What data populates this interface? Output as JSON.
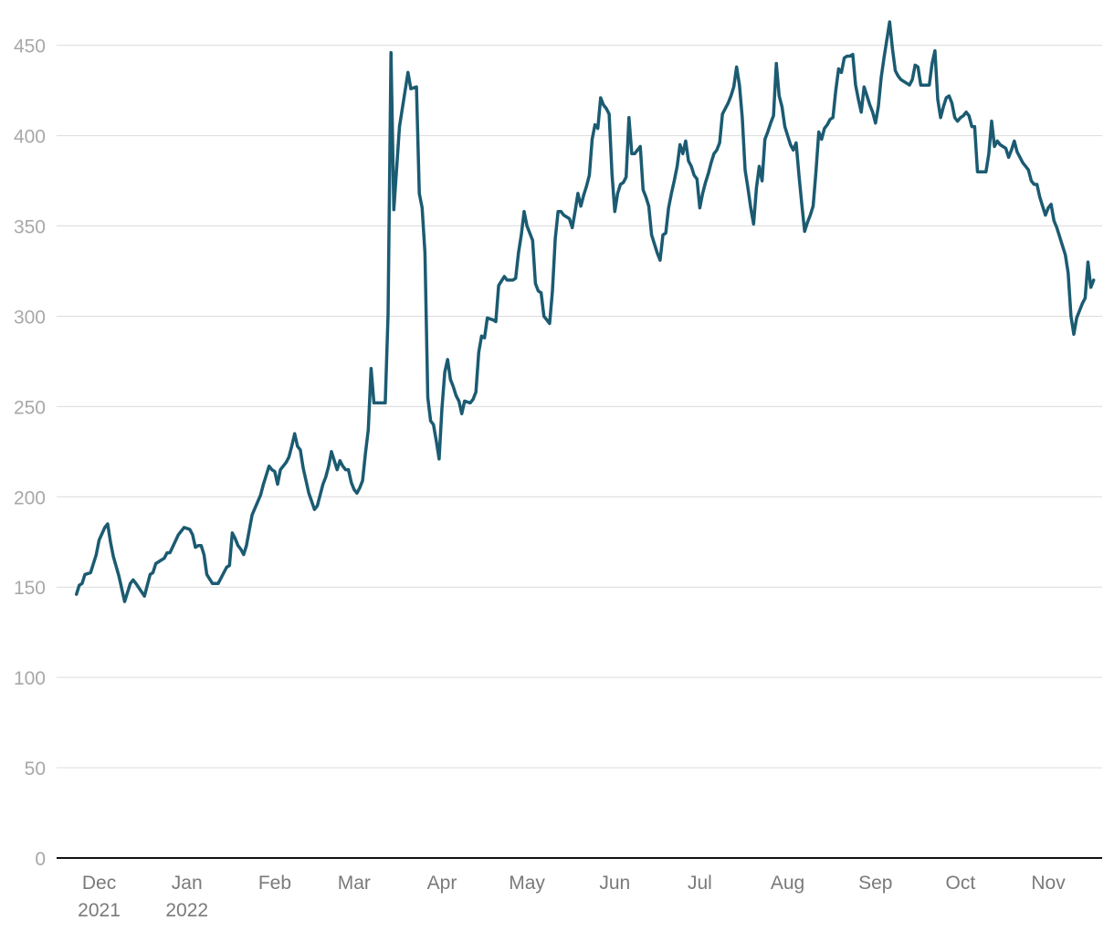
{
  "chart_data": {
    "type": "line",
    "title": "",
    "xlabel": "",
    "ylabel": "",
    "ylim": [
      0,
      465
    ],
    "xlim": [
      "2021-11-20",
      "2022-11-24"
    ],
    "grid": "horizontal",
    "legend": "none",
    "color": "#1b5b72",
    "y_ticks": [
      "0",
      "50",
      "100",
      "150",
      "200",
      "250",
      "300",
      "350",
      "400",
      "450"
    ],
    "x_ticks": [
      {
        "date": "2021-12-05",
        "label": "Dec",
        "sub": "2021"
      },
      {
        "date": "2022-01-05",
        "label": "Jan",
        "sub": "2022"
      },
      {
        "date": "2022-02-05",
        "label": "Feb",
        "sub": ""
      },
      {
        "date": "2022-03-05",
        "label": "Mar",
        "sub": ""
      },
      {
        "date": "2022-04-05",
        "label": "Apr",
        "sub": ""
      },
      {
        "date": "2022-05-05",
        "label": "May",
        "sub": ""
      },
      {
        "date": "2022-06-05",
        "label": "Jun",
        "sub": ""
      },
      {
        "date": "2022-07-05",
        "label": "Jul",
        "sub": ""
      },
      {
        "date": "2022-08-05",
        "label": "Aug",
        "sub": ""
      },
      {
        "date": "2022-09-05",
        "label": "Sep",
        "sub": ""
      },
      {
        "date": "2022-10-05",
        "label": "Oct",
        "sub": ""
      },
      {
        "date": "2022-11-05",
        "label": "Nov",
        "sub": ""
      }
    ],
    "series": [
      {
        "x": [
          "2021-11-27",
          "2021-11-28",
          "2021-11-29",
          "2021-11-30",
          "2021-12-02",
          "2021-12-03",
          "2021-12-04",
          "2021-12-05",
          "2021-12-07",
          "2021-12-08",
          "2021-12-09",
          "2021-12-10",
          "2021-12-12",
          "2021-12-14",
          "2021-12-16",
          "2021-12-17",
          "2021-12-18",
          "2021-12-21",
          "2021-12-23",
          "2021-12-24",
          "2021-12-25",
          "2021-12-27",
          "2021-12-28",
          "2021-12-29",
          "2021-12-30",
          "2022-01-02",
          "2022-01-03",
          "2022-01-04",
          "2022-01-06",
          "2022-01-07",
          "2022-01-08",
          "2022-01-09",
          "2022-01-10",
          "2022-01-11",
          "2022-01-12",
          "2022-01-14",
          "2022-01-15",
          "2022-01-16",
          "2022-01-19",
          "2022-01-20",
          "2022-01-21",
          "2022-01-22",
          "2022-01-23",
          "2022-01-24",
          "2022-01-25",
          "2022-01-26",
          "2022-01-28",
          "2022-01-31",
          "2022-02-01",
          "2022-02-02",
          "2022-02-03",
          "2022-02-04",
          "2022-02-05",
          "2022-02-06",
          "2022-02-07",
          "2022-02-09",
          "2022-02-10",
          "2022-02-11",
          "2022-02-12",
          "2022-02-13",
          "2022-02-14",
          "2022-02-15",
          "2022-02-17",
          "2022-02-19",
          "2022-02-20",
          "2022-02-22",
          "2022-02-23",
          "2022-02-24",
          "2022-02-25",
          "2022-02-26",
          "2022-02-27",
          "2022-02-28",
          "2022-03-01",
          "2022-03-02",
          "2022-03-03",
          "2022-03-04",
          "2022-03-05",
          "2022-03-06",
          "2022-03-07",
          "2022-03-08",
          "2022-03-09",
          "2022-03-10",
          "2022-03-11",
          "2022-03-12",
          "2022-03-13",
          "2022-03-14",
          "2022-03-15",
          "2022-03-16",
          "2022-03-17",
          "2022-03-18",
          "2022-03-19",
          "2022-03-21",
          "2022-03-22",
          "2022-03-23",
          "2022-03-24",
          "2022-03-25",
          "2022-03-27",
          "2022-03-28",
          "2022-03-29",
          "2022-03-30",
          "2022-03-31",
          "2022-04-01",
          "2022-04-02",
          "2022-04-03",
          "2022-04-04",
          "2022-04-05",
          "2022-04-06",
          "2022-04-07",
          "2022-04-08",
          "2022-04-09",
          "2022-04-10",
          "2022-04-11",
          "2022-04-12",
          "2022-04-13",
          "2022-04-15",
          "2022-04-16",
          "2022-04-17",
          "2022-04-18",
          "2022-04-19",
          "2022-04-20",
          "2022-04-21",
          "2022-04-23",
          "2022-04-24",
          "2022-04-25",
          "2022-04-27",
          "2022-04-28",
          "2022-04-29",
          "2022-04-30",
          "2022-05-01",
          "2022-05-02",
          "2022-05-03",
          "2022-05-04",
          "2022-05-05",
          "2022-05-06",
          "2022-05-07",
          "2022-05-08",
          "2022-05-09",
          "2022-05-10",
          "2022-05-11",
          "2022-05-12",
          "2022-05-13",
          "2022-05-14",
          "2022-05-15",
          "2022-05-16",
          "2022-05-17",
          "2022-05-18",
          "2022-05-19",
          "2022-05-20",
          "2022-05-21",
          "2022-05-22",
          "2022-05-23",
          "2022-05-24",
          "2022-05-25",
          "2022-05-26",
          "2022-05-27",
          "2022-05-28",
          "2022-05-29",
          "2022-05-30",
          "2022-05-31",
          "2022-06-01",
          "2022-06-02",
          "2022-06-03",
          "2022-06-04",
          "2022-06-05",
          "2022-06-06",
          "2022-06-07",
          "2022-06-08",
          "2022-06-09",
          "2022-06-10",
          "2022-06-11",
          "2022-06-12",
          "2022-06-13",
          "2022-06-14",
          "2022-06-15",
          "2022-06-16",
          "2022-06-17",
          "2022-06-18",
          "2022-06-19",
          "2022-06-20",
          "2022-06-21",
          "2022-06-22",
          "2022-06-23",
          "2022-06-24",
          "2022-06-25",
          "2022-06-26",
          "2022-06-27",
          "2022-06-28",
          "2022-06-29",
          "2022-06-30",
          "2022-07-01",
          "2022-07-02",
          "2022-07-03",
          "2022-07-04",
          "2022-07-05",
          "2022-07-06",
          "2022-07-07",
          "2022-07-08",
          "2022-07-09",
          "2022-07-10",
          "2022-07-11",
          "2022-07-12",
          "2022-07-13",
          "2022-07-14",
          "2022-07-15",
          "2022-07-16",
          "2022-07-17",
          "2022-07-18",
          "2022-07-19",
          "2022-07-20",
          "2022-07-21",
          "2022-07-22",
          "2022-07-23",
          "2022-07-24",
          "2022-07-25",
          "2022-07-26",
          "2022-07-27",
          "2022-07-28",
          "2022-07-29",
          "2022-07-30",
          "2022-07-31",
          "2022-08-01",
          "2022-08-02",
          "2022-08-03",
          "2022-08-04",
          "2022-08-05",
          "2022-08-06",
          "2022-08-07",
          "2022-08-08",
          "2022-08-09",
          "2022-08-10",
          "2022-08-11",
          "2022-08-12",
          "2022-08-13",
          "2022-08-14",
          "2022-08-15",
          "2022-08-16",
          "2022-08-17",
          "2022-08-18",
          "2022-08-19",
          "2022-08-20",
          "2022-08-21",
          "2022-08-22",
          "2022-08-23",
          "2022-08-24",
          "2022-08-25",
          "2022-08-26",
          "2022-08-27",
          "2022-08-28",
          "2022-08-29",
          "2022-08-30",
          "2022-08-31",
          "2022-09-01",
          "2022-09-02",
          "2022-09-03",
          "2022-09-04",
          "2022-09-05",
          "2022-09-06",
          "2022-09-07",
          "2022-09-08",
          "2022-09-09",
          "2022-09-10",
          "2022-09-11",
          "2022-09-12",
          "2022-09-13",
          "2022-09-14",
          "2022-09-15",
          "2022-09-16",
          "2022-09-17",
          "2022-09-18",
          "2022-09-19",
          "2022-09-20",
          "2022-09-21",
          "2022-09-22",
          "2022-09-23",
          "2022-09-24",
          "2022-09-25",
          "2022-09-26",
          "2022-09-27",
          "2022-09-28",
          "2022-09-29",
          "2022-09-30",
          "2022-10-01",
          "2022-10-02",
          "2022-10-03",
          "2022-10-04",
          "2022-10-05",
          "2022-10-06",
          "2022-10-07",
          "2022-10-08",
          "2022-10-09",
          "2022-10-10",
          "2022-10-11",
          "2022-10-12",
          "2022-10-13",
          "2022-10-14",
          "2022-10-15",
          "2022-10-16",
          "2022-10-17",
          "2022-10-18",
          "2022-10-19",
          "2022-10-20",
          "2022-10-21",
          "2022-10-22",
          "2022-10-23",
          "2022-10-24",
          "2022-10-25",
          "2022-10-26",
          "2022-10-27",
          "2022-10-28",
          "2022-10-29",
          "2022-10-30",
          "2022-10-31",
          "2022-11-01",
          "2022-11-02",
          "2022-11-03",
          "2022-11-04",
          "2022-11-05",
          "2022-11-06",
          "2022-11-07",
          "2022-11-08",
          "2022-11-09",
          "2022-11-10",
          "2022-11-11",
          "2022-11-12",
          "2022-11-13",
          "2022-11-14",
          "2022-11-15",
          "2022-11-16",
          "2022-11-17",
          "2022-11-18",
          "2022-11-19",
          "2022-11-20",
          "2022-11-21"
        ],
        "y": [
          146,
          151,
          152,
          157,
          158,
          163,
          168,
          176,
          183,
          185,
          175,
          167,
          156,
          142,
          152,
          154,
          152,
          145,
          157,
          158,
          163,
          165,
          166,
          169,
          169,
          179,
          181,
          183,
          182,
          179,
          172,
          173,
          173,
          168,
          157,
          152,
          152,
          152,
          161,
          162,
          180,
          177,
          173,
          171,
          168,
          173,
          190,
          201,
          207,
          212,
          217,
          215,
          214,
          207,
          215,
          219,
          222,
          228,
          235,
          228,
          226,
          216,
          202,
          193,
          195,
          207,
          211,
          217,
          225,
          220,
          215,
          220,
          217,
          215,
          215,
          208,
          204,
          202,
          205,
          209,
          224,
          237,
          271,
          252,
          252,
          252,
          252,
          252,
          301,
          446,
          359,
          405,
          415,
          425,
          435,
          426,
          427,
          368,
          360,
          335,
          255,
          242,
          240,
          231,
          221,
          249,
          269,
          276,
          265,
          261,
          256,
          253,
          246,
          253,
          252,
          254,
          258,
          280,
          289,
          288,
          299,
          298,
          297,
          317,
          322,
          320,
          320,
          320,
          321,
          335,
          345,
          358,
          350,
          346,
          342,
          318,
          314,
          313,
          300,
          298,
          296,
          314,
          343,
          358,
          358,
          356,
          355,
          354,
          349,
          358,
          368,
          361,
          367,
          372,
          378,
          398,
          406,
          404,
          421,
          417,
          415,
          412,
          379,
          358,
          368,
          373,
          374,
          377,
          410,
          390,
          390,
          392,
          394,
          370,
          366,
          361,
          345,
          340,
          335,
          331,
          345,
          346,
          360,
          368,
          375,
          383,
          395,
          390,
          397,
          386,
          383,
          378,
          376,
          360,
          368,
          374,
          379,
          385,
          390,
          392,
          396,
          412,
          415,
          418,
          422,
          427,
          438,
          428,
          410,
          381,
          371,
          360,
          351,
          371,
          383,
          375,
          398,
          402,
          407,
          411,
          440,
          422,
          416,
          405,
          400,
          395,
          392,
          396,
          378,
          362,
          347,
          352,
          356,
          361,
          380,
          402,
          398,
          404,
          406,
          409,
          410,
          425,
          437,
          435,
          443,
          444,
          444,
          445,
          428,
          420,
          413,
          427,
          422,
          417,
          413,
          407,
          416,
          432,
          443,
          453,
          463,
          448,
          436,
          433,
          431,
          430,
          429,
          428,
          431,
          439,
          438,
          428,
          428,
          428,
          428,
          440,
          447,
          420,
          410,
          416,
          421,
          422,
          418,
          410,
          408,
          410,
          411,
          413,
          411,
          405,
          405,
          380,
          380,
          380,
          380,
          390,
          408,
          394,
          397,
          395,
          394,
          393,
          388,
          392,
          397,
          391,
          388,
          385,
          383,
          381,
          375,
          373,
          373,
          366,
          361,
          356,
          360,
          362,
          353,
          349,
          344,
          339,
          334,
          324,
          300,
          290,
          299,
          303,
          307,
          310,
          330,
          316,
          320
        ]
      }
    ]
  }
}
